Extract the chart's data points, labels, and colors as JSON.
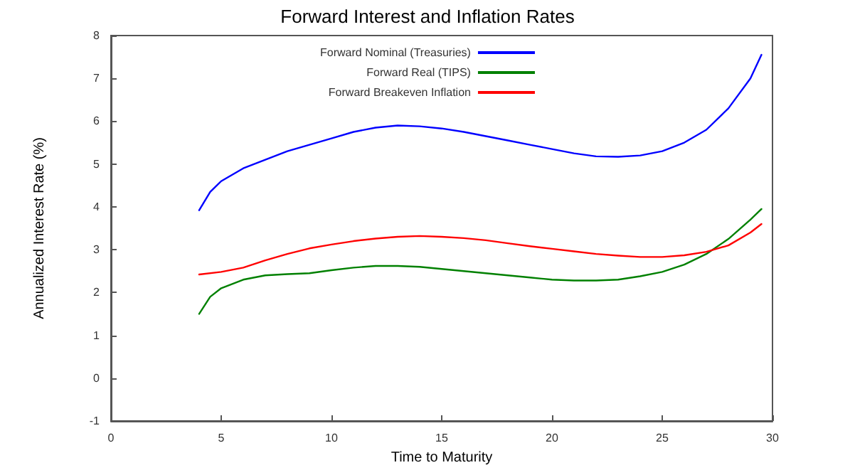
{
  "chart_data": {
    "type": "line",
    "title": "Forward Interest and Inflation Rates",
    "xlabel": "Time to Maturity",
    "ylabel": "Annualized Interest Rate (%)",
    "xlim": [
      0,
      30
    ],
    "xticks": [
      0,
      5,
      10,
      15,
      20,
      25,
      30
    ],
    "ylim": [
      -1,
      8
    ],
    "yticks": [
      -1,
      0,
      1,
      2,
      3,
      4,
      5,
      6,
      7,
      8
    ],
    "grid": false,
    "legend": "top",
    "marker": "none",
    "line_style": "solid",
    "series": [
      {
        "name": "Forward Nominal (Treasuries)",
        "color": "#0000ff",
        "x": [
          4,
          4.5,
          5,
          6,
          7,
          8,
          9,
          10,
          11,
          12,
          13,
          14,
          15,
          16,
          17,
          18,
          19,
          20,
          21,
          22,
          23,
          24,
          25,
          26,
          27,
          28,
          29,
          29.5
        ],
        "values": [
          3.92,
          4.35,
          4.6,
          4.9,
          5.1,
          5.3,
          5.45,
          5.6,
          5.75,
          5.85,
          5.9,
          5.88,
          5.83,
          5.75,
          5.65,
          5.55,
          5.45,
          5.35,
          5.25,
          5.18,
          5.17,
          5.2,
          5.3,
          5.5,
          5.8,
          6.3,
          7.0,
          7.55
        ]
      },
      {
        "name": "Forward Real (TIPS)",
        "color": "#008000",
        "x": [
          4,
          4.5,
          5,
          6,
          7,
          8,
          9,
          10,
          11,
          12,
          13,
          14,
          15,
          16,
          17,
          18,
          19,
          20,
          21,
          22,
          23,
          24,
          25,
          26,
          27,
          28,
          29,
          29.5
        ],
        "values": [
          1.5,
          1.9,
          2.1,
          2.3,
          2.4,
          2.43,
          2.45,
          2.52,
          2.58,
          2.62,
          2.62,
          2.6,
          2.55,
          2.5,
          2.45,
          2.4,
          2.35,
          2.3,
          2.28,
          2.28,
          2.3,
          2.38,
          2.48,
          2.65,
          2.9,
          3.25,
          3.7,
          3.95
        ]
      },
      {
        "name": "Forward Breakeven Inflation",
        "color": "#ff0000",
        "x": [
          4,
          5,
          6,
          7,
          8,
          9,
          10,
          11,
          12,
          13,
          14,
          15,
          16,
          17,
          18,
          19,
          20,
          21,
          22,
          23,
          24,
          25,
          26,
          27,
          28,
          29,
          29.5
        ],
        "values": [
          2.42,
          2.48,
          2.58,
          2.75,
          2.9,
          3.03,
          3.12,
          3.2,
          3.26,
          3.3,
          3.32,
          3.3,
          3.27,
          3.22,
          3.15,
          3.08,
          3.02,
          2.96,
          2.9,
          2.86,
          2.83,
          2.83,
          2.87,
          2.95,
          3.1,
          3.4,
          3.6
        ]
      }
    ]
  }
}
